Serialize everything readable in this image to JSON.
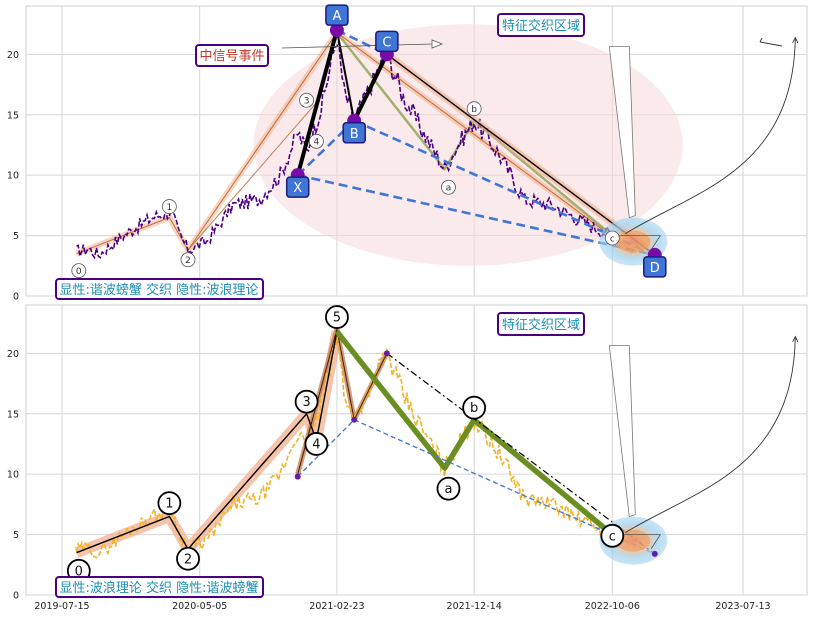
{
  "chart_data": [
    {
      "type": "line",
      "panel": "top",
      "xlim": [
        "2019-07-15",
        "2023-11-30"
      ],
      "ylim": [
        0,
        24
      ],
      "yticks": [
        "0",
        "5",
        "10",
        "15",
        "20"
      ],
      "grid": true,
      "price_style": {
        "color": "#4b0082",
        "dash": "dashed"
      },
      "price_anchors": [
        {
          "x": "2019-08-15",
          "y": 3.7
        },
        {
          "x": "2019-09-10",
          "y": 3.9
        },
        {
          "x": "2019-10-01",
          "y": 3.4
        },
        {
          "x": "2019-12-01",
          "y": 5.2
        },
        {
          "x": "2020-01-25",
          "y": 6.5
        },
        {
          "x": "2020-03-05",
          "y": 7.0
        },
        {
          "x": "2020-03-20",
          "y": 5.3
        },
        {
          "x": "2020-04-10",
          "y": 3.8
        },
        {
          "x": "2020-05-20",
          "y": 4.5
        },
        {
          "x": "2020-07-15",
          "y": 7.5
        },
        {
          "x": "2020-09-10",
          "y": 8.0
        },
        {
          "x": "2020-10-25",
          "y": 10.0
        },
        {
          "x": "2020-12-01",
          "y": 13.5
        },
        {
          "x": "2020-12-20",
          "y": 12.0
        },
        {
          "x": "2021-01-20",
          "y": 15.5
        },
        {
          "x": "2021-02-23",
          "y": 21.5
        },
        {
          "x": "2021-03-10",
          "y": 17.0
        },
        {
          "x": "2021-04-01",
          "y": 14.5
        },
        {
          "x": "2021-05-20",
          "y": 18.5
        },
        {
          "x": "2021-06-10",
          "y": 20.0
        },
        {
          "x": "2021-07-15",
          "y": 16.5
        },
        {
          "x": "2021-08-20",
          "y": 14.0
        },
        {
          "x": "2021-10-12",
          "y": 10.5
        },
        {
          "x": "2021-11-10",
          "y": 12.5
        },
        {
          "x": "2021-12-14",
          "y": 14.5
        },
        {
          "x": "2022-02-01",
          "y": 12.0
        },
        {
          "x": "2022-04-01",
          "y": 8.0
        },
        {
          "x": "2022-06-01",
          "y": 7.5
        },
        {
          "x": "2022-08-10",
          "y": 6.0
        },
        {
          "x": "2022-10-06",
          "y": 5.0
        }
      ],
      "envelope_path": [
        {
          "x": "2019-08-15",
          "y": 3.5
        },
        {
          "x": "2020-03-01",
          "y": 6.5
        },
        {
          "x": "2020-04-10",
          "y": 3.8
        },
        {
          "x": "2021-02-23",
          "y": 21.8
        },
        {
          "x": "2022-11-20",
          "y": 3.6
        }
      ],
      "envelope_inner": [
        {
          "x": "2020-04-10",
          "y": 3.8
        },
        {
          "x": "2021-01-10",
          "y": 16.0
        }
      ],
      "pattern_points": [
        {
          "label": "X",
          "x": "2020-12-01",
          "y": 10.0
        },
        {
          "label": "A",
          "x": "2021-02-23",
          "y": 22.0
        },
        {
          "label": "B",
          "x": "2021-04-01",
          "y": 14.5
        },
        {
          "label": "C",
          "x": "2021-06-10",
          "y": 20.0
        },
        {
          "label": "D",
          "x": "2023-01-05",
          "y": 3.4
        }
      ],
      "black_legs": [
        [
          "X",
          "A"
        ],
        [
          "A",
          "B"
        ],
        [
          "B",
          "C"
        ],
        [
          "C",
          "D"
        ]
      ],
      "black_leg_widths": [
        4,
        2,
        4,
        1.4
      ],
      "blue_dashed_lines": [
        [
          "X",
          "B"
        ],
        [
          "A",
          "C"
        ],
        [
          "B",
          "D"
        ],
        [
          "X",
          "D"
        ]
      ],
      "olive_line": [
        {
          "x": "2021-02-23",
          "y": 21.8
        },
        {
          "x": "2021-10-12",
          "y": 10.5
        },
        {
          "x": "2021-12-14",
          "y": 14.5
        },
        {
          "x": "2022-10-06",
          "y": 5.0
        }
      ],
      "elliott_labels": [
        {
          "label": "0",
          "x": "2019-08-20",
          "y": 2.1
        },
        {
          "label": "1",
          "x": "2020-03-01",
          "y": 7.4
        },
        {
          "label": "2",
          "x": "2020-04-10",
          "y": 3.0
        },
        {
          "label": "3",
          "x": "2020-12-20",
          "y": 16.2
        },
        {
          "label": "4",
          "x": "2021-01-10",
          "y": 12.8
        },
        {
          "label": "a",
          "x": "2021-10-20",
          "y": 9.0
        },
        {
          "label": "b",
          "x": "2021-12-14",
          "y": 15.5
        },
        {
          "label": "c",
          "x": "2022-10-06",
          "y": 4.8
        }
      ],
      "ellipse": {
        "cx": "2021-12-01",
        "cy": 12.5,
        "rx_days": 460,
        "ry": 10.0
      },
      "target_zone": {
        "x": "2022-11-20",
        "y": 4.5
      },
      "annotations": {
        "signal_event": "中信号事件",
        "feature_zone": "特征交织区域",
        "caption": "显性:谐波螃蟹 交织 隐性:波浪理论"
      }
    },
    {
      "type": "line",
      "panel": "bottom",
      "xlim": [
        "2019-07-15",
        "2023-11-30"
      ],
      "ylim": [
        0,
        24
      ],
      "yticks": [
        "0",
        "5",
        "10",
        "15",
        "20"
      ],
      "grid": true,
      "price_style": {
        "color": "#f0b429",
        "dash": "dashed"
      },
      "price_anchors": [
        {
          "x": "2019-08-15",
          "y": 3.7
        },
        {
          "x": "2019-09-10",
          "y": 3.9
        },
        {
          "x": "2019-10-01",
          "y": 3.4
        },
        {
          "x": "2019-12-01",
          "y": 5.2
        },
        {
          "x": "2020-01-25",
          "y": 6.5
        },
        {
          "x": "2020-03-05",
          "y": 7.0
        },
        {
          "x": "2020-03-20",
          "y": 5.3
        },
        {
          "x": "2020-04-10",
          "y": 3.8
        },
        {
          "x": "2020-05-20",
          "y": 4.5
        },
        {
          "x": "2020-07-15",
          "y": 7.5
        },
        {
          "x": "2020-09-10",
          "y": 8.0
        },
        {
          "x": "2020-10-25",
          "y": 10.0
        },
        {
          "x": "2020-12-01",
          "y": 13.5
        },
        {
          "x": "2020-12-20",
          "y": 12.0
        },
        {
          "x": "2021-01-20",
          "y": 15.5
        },
        {
          "x": "2021-02-23",
          "y": 21.5
        },
        {
          "x": "2021-03-10",
          "y": 17.0
        },
        {
          "x": "2021-04-01",
          "y": 14.5
        },
        {
          "x": "2021-05-20",
          "y": 18.5
        },
        {
          "x": "2021-06-10",
          "y": 20.0
        },
        {
          "x": "2021-07-15",
          "y": 16.5
        },
        {
          "x": "2021-08-20",
          "y": 14.0
        },
        {
          "x": "2021-10-12",
          "y": 10.5
        },
        {
          "x": "2021-11-10",
          "y": 12.5
        },
        {
          "x": "2021-12-14",
          "y": 14.5
        },
        {
          "x": "2022-02-01",
          "y": 12.0
        },
        {
          "x": "2022-04-01",
          "y": 8.0
        },
        {
          "x": "2022-06-01",
          "y": 7.5
        },
        {
          "x": "2022-08-10",
          "y": 6.0
        },
        {
          "x": "2022-10-06",
          "y": 5.0
        }
      ],
      "wave_path": [
        {
          "x": "2019-08-15",
          "y": 3.5
        },
        {
          "x": "2020-03-01",
          "y": 6.5
        },
        {
          "x": "2020-04-10",
          "y": 3.8
        },
        {
          "x": "2020-12-20",
          "y": 15.0
        },
        {
          "x": "2021-01-10",
          "y": 12.8
        },
        {
          "x": "2021-02-23",
          "y": 21.8
        }
      ],
      "wave_corrective": [
        {
          "x": "2021-02-23",
          "y": 21.8
        },
        {
          "x": "2021-10-12",
          "y": 10.5
        },
        {
          "x": "2021-12-14",
          "y": 14.5
        },
        {
          "x": "2022-10-06",
          "y": 5.0
        }
      ],
      "brown_lines": [
        [
          {
            "x": "2020-12-01",
            "y": 10.0
          },
          {
            "x": "2021-02-23",
            "y": 22.0
          }
        ],
        [
          {
            "x": "2021-02-23",
            "y": 22.0
          },
          {
            "x": "2021-04-01",
            "y": 14.5
          }
        ],
        [
          {
            "x": "2021-04-01",
            "y": 14.5
          },
          {
            "x": "2021-06-10",
            "y": 20.0
          }
        ]
      ],
      "dashdot_line": [
        {
          "x": "2021-06-10",
          "y": 20.0
        },
        {
          "x": "2023-01-05",
          "y": 3.4
        }
      ],
      "blue_thin_dashed": [
        [
          {
            "x": "2020-12-01",
            "y": 9.8
          },
          {
            "x": "2021-04-01",
            "y": 14.5
          }
        ],
        [
          {
            "x": "2021-04-01",
            "y": 14.5
          },
          {
            "x": "2023-01-05",
            "y": 3.4
          }
        ]
      ],
      "small_points": [
        {
          "x": "2020-12-01",
          "y": 9.8
        },
        {
          "x": "2021-04-01",
          "y": 14.5
        },
        {
          "x": "2021-06-10",
          "y": 20.0
        },
        {
          "x": "2023-01-05",
          "y": 3.4
        }
      ],
      "elliott_labels": [
        {
          "label": "0",
          "x": "2019-08-20",
          "y": 2.0
        },
        {
          "label": "1",
          "x": "2020-03-01",
          "y": 7.6
        },
        {
          "label": "2",
          "x": "2020-04-10",
          "y": 3.0
        },
        {
          "label": "3",
          "x": "2020-12-20",
          "y": 16.0
        },
        {
          "label": "4",
          "x": "2021-01-10",
          "y": 12.5
        },
        {
          "label": "5",
          "x": "2021-02-23",
          "y": 23.0
        },
        {
          "label": "a",
          "x": "2021-10-20",
          "y": 8.8
        },
        {
          "label": "b",
          "x": "2021-12-14",
          "y": 15.5
        },
        {
          "label": "c",
          "x": "2022-10-06",
          "y": 4.9
        }
      ],
      "target_zone": {
        "x": "2022-11-20",
        "y": 4.5
      },
      "annotations": {
        "feature_zone": "特征交织区域",
        "caption": "显性:波浪理论 交织 隐性:谐波螃蟹"
      },
      "x_tick_labels": [
        "2019-07-15",
        "2020-05-05",
        "2021-02-23",
        "2021-12-14",
        "2022-10-06",
        "2023-07-13"
      ]
    }
  ]
}
